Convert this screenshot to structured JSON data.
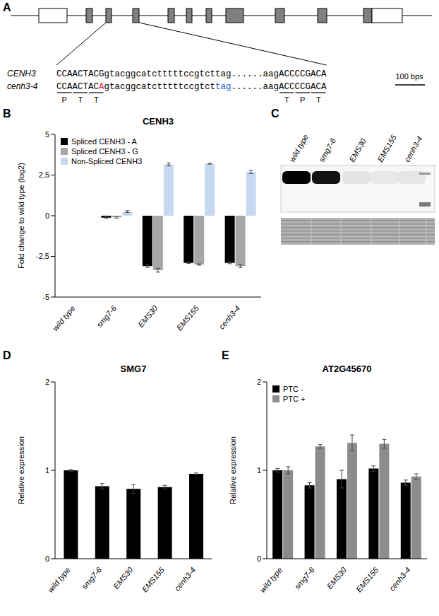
{
  "diagram": {
    "panel": "A",
    "gene_rows": [
      {
        "name": "CENH3",
        "segments": [
          {
            "text": "CCAACTACGgtacggcatctttttccgtcttag......aagACCCCGACA",
            "color": "#000000"
          }
        ]
      },
      {
        "name": "cenh3-4",
        "segments": [
          {
            "text": "CCAACTAC",
            "color": "#000000"
          },
          {
            "text": "A",
            "color": "#e03030"
          },
          {
            "text": "gtacggcatctttttccgtct",
            "color": "#000000"
          },
          {
            "text": "tag",
            "color": "#2a5bd7"
          },
          {
            "text": "......aagACCCCGACA",
            "color": "#000000"
          }
        ]
      }
    ],
    "codons": [
      "P",
      "T",
      "T",
      "T",
      "P",
      "T"
    ],
    "scale_bar": "100 bps"
  },
  "blot": {
    "panel": "C",
    "lanes": [
      "wild type",
      "smg7-6",
      "EMS30",
      "EMS155",
      "cenh3-4"
    ]
  },
  "chart_data": [
    {
      "panel": "B",
      "type": "bar",
      "title": "CENH3",
      "y_label": "Fold change to wild type (log2)",
      "categories": [
        "wild type",
        "smg7-6",
        "EMS30",
        "EMS155",
        "cenh3-4"
      ],
      "series": [
        {
          "name": "Spliced CENH3 - A",
          "color": "#000000",
          "values": [
            0,
            -0.12,
            -3.1,
            -2.9,
            -2.9
          ],
          "errors": [
            0.03,
            0.05,
            0.08,
            0.03,
            0.05
          ]
        },
        {
          "name": "Spliced CENH3 - G",
          "color": "#a6a6a6",
          "values": [
            0,
            -0.1,
            -3.35,
            -3.0,
            -3.1
          ],
          "errors": [
            0.03,
            0.05,
            0.12,
            0.04,
            0.08
          ]
        },
        {
          "name": "Non-Spliced CENH3",
          "color": "#c6d9f0",
          "values": [
            0,
            0.25,
            3.15,
            3.2,
            2.7
          ],
          "errors": [
            0.03,
            0.06,
            0.09,
            0.03,
            0.1
          ]
        }
      ],
      "ylim": [
        -5,
        5
      ],
      "yticks": [
        -5,
        {
          "value": -2.5,
          "label": "-2,5"
        },
        0,
        {
          "value": 2.5,
          "label": "2,5"
        },
        5
      ],
      "legend": "upper left"
    },
    {
      "panel": "D",
      "type": "bar",
      "title": "SMG7",
      "y_label": "Relative expression",
      "categories": [
        "wild type",
        "smg7-6",
        "EMS30",
        "EMS155",
        "cenh3-4"
      ],
      "values": [
        1.0,
        0.82,
        0.79,
        0.81,
        0.96
      ],
      "errors": [
        0.01,
        0.03,
        0.05,
        0.02,
        0.01
      ],
      "color": "#000000",
      "ylim": [
        0,
        2
      ],
      "yticks": [
        0,
        1,
        2
      ]
    },
    {
      "panel": "E",
      "type": "bar",
      "title": "AT2G45670",
      "y_label": "Relative expression",
      "categories": [
        "wild type",
        "smg7-6",
        "EMS30",
        "EMS155",
        "cenh3-4"
      ],
      "series": [
        {
          "name": "PTC -",
          "color": "#000000",
          "values": [
            1.0,
            0.83,
            0.9,
            1.02,
            0.86
          ],
          "errors": [
            0.02,
            0.03,
            0.1,
            0.03,
            0.03
          ]
        },
        {
          "name": "PTC +",
          "color": "#8c8c8c",
          "values": [
            1.0,
            1.27,
            1.31,
            1.3,
            0.93
          ],
          "errors": [
            0.04,
            0.02,
            0.09,
            0.05,
            0.03
          ]
        }
      ],
      "ylim": [
        0,
        2
      ],
      "yticks": [
        0,
        1,
        2
      ],
      "legend": "upper left"
    }
  ]
}
